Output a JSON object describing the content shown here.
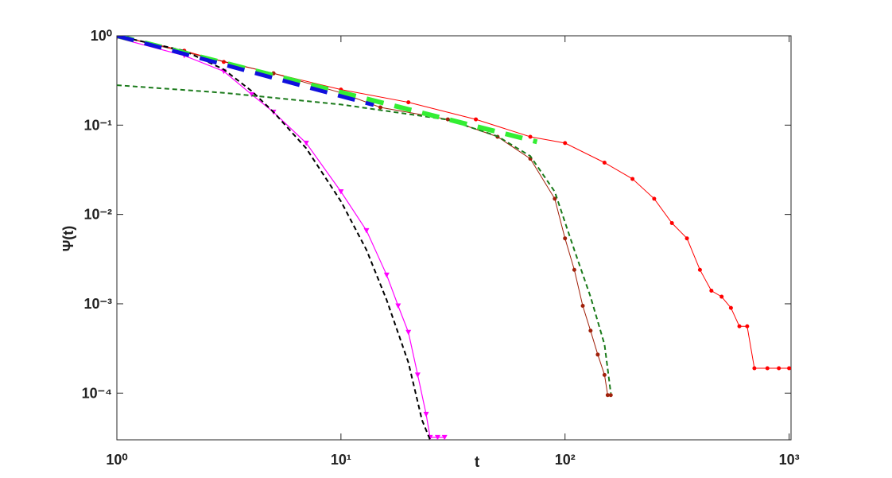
{
  "chart_data": {
    "type": "line",
    "xlabel": "t",
    "ylabel": "Ψ(t)",
    "xscale": "log",
    "yscale": "log",
    "xlim": [
      1,
      1020
    ],
    "ylim": [
      3e-05,
      1
    ],
    "xticks": [
      {
        "value": 1,
        "label": "10⁰"
      },
      {
        "value": 10,
        "label": "10¹"
      },
      {
        "value": 100,
        "label": "10²"
      },
      {
        "value": 1000,
        "label": "10³"
      }
    ],
    "yticks": [
      {
        "value": 0.0001,
        "label": "10⁻⁴"
      },
      {
        "value": 0.001,
        "label": "10⁻³"
      },
      {
        "value": 0.01,
        "label": "10⁻²"
      },
      {
        "value": 0.1,
        "label": "10⁻¹"
      },
      {
        "value": 1,
        "label": "10⁰"
      }
    ],
    "series": [
      {
        "color": "#ff0000",
        "line": "solid",
        "width": 1,
        "marker": "dot",
        "x": [
          1,
          2,
          3,
          5,
          10,
          20,
          40,
          70,
          100,
          150,
          200,
          250,
          300,
          350,
          400,
          450,
          500,
          550,
          600,
          650,
          700,
          800,
          900,
          1000
        ],
        "values": [
          1.0,
          0.68,
          0.51,
          0.38,
          0.25,
          0.18,
          0.116,
          0.074,
          0.063,
          0.038,
          0.025,
          0.015,
          0.008,
          0.0054,
          0.0024,
          0.0014,
          0.0012,
          0.0009,
          0.00056,
          0.00056,
          0.00019,
          0.00019,
          0.00019,
          0.00019
        ]
      },
      {
        "color": "#a0200a",
        "line": "solid",
        "width": 1,
        "marker": "dot",
        "x": [
          1,
          2,
          5,
          10,
          15,
          30,
          50,
          70,
          90,
          100,
          110,
          120,
          130,
          140,
          150,
          155,
          160
        ],
        "values": [
          1.0,
          0.66,
          0.38,
          0.23,
          0.158,
          0.116,
          0.074,
          0.042,
          0.015,
          0.0054,
          0.0024,
          0.00095,
          0.0005,
          0.00027,
          0.00016,
          9.5e-05,
          9.5e-05
        ]
      },
      {
        "color": "#ff00ff",
        "line": "solid",
        "width": 1.2,
        "marker": "triangle",
        "x": [
          1,
          2,
          3,
          4,
          5,
          7,
          10,
          13,
          16,
          18,
          20,
          22,
          24,
          25,
          27,
          29
        ],
        "values": [
          0.95,
          0.6,
          0.4,
          0.22,
          0.14,
          0.063,
          0.018,
          0.0066,
          0.0021,
          0.00095,
          0.00048,
          0.00016,
          5.8e-05,
          3.2e-05,
          3.2e-05,
          3.2e-05
        ]
      },
      {
        "color": "#000000",
        "line": "dashed",
        "width": 2,
        "marker": "none",
        "x": [
          1,
          2,
          3,
          4,
          5,
          7,
          10,
          13,
          16,
          20,
          23,
          25
        ],
        "values": [
          1.0,
          0.68,
          0.42,
          0.24,
          0.14,
          0.055,
          0.014,
          0.004,
          0.0011,
          0.00022,
          5e-05,
          3e-05
        ]
      },
      {
        "color": "#1a7a1a",
        "line": "dashed",
        "width": 2,
        "marker": "none",
        "x": [
          1,
          3,
          10,
          30,
          50,
          70,
          90,
          110,
          130,
          150,
          160
        ],
        "values": [
          0.28,
          0.23,
          0.17,
          0.115,
          0.075,
          0.045,
          0.018,
          0.004,
          0.0012,
          0.00035,
          0.0001
        ]
      },
      {
        "color": "#33ee33",
        "line": "longdash",
        "width": 6,
        "marker": "none",
        "x": [
          1,
          75
        ],
        "values": [
          1.0,
          0.065
        ]
      },
      {
        "color": "#1010dd",
        "line": "longdash",
        "width": 5,
        "marker": "none",
        "x": [
          1,
          14
        ],
        "values": [
          1.0,
          0.168
        ]
      }
    ]
  }
}
